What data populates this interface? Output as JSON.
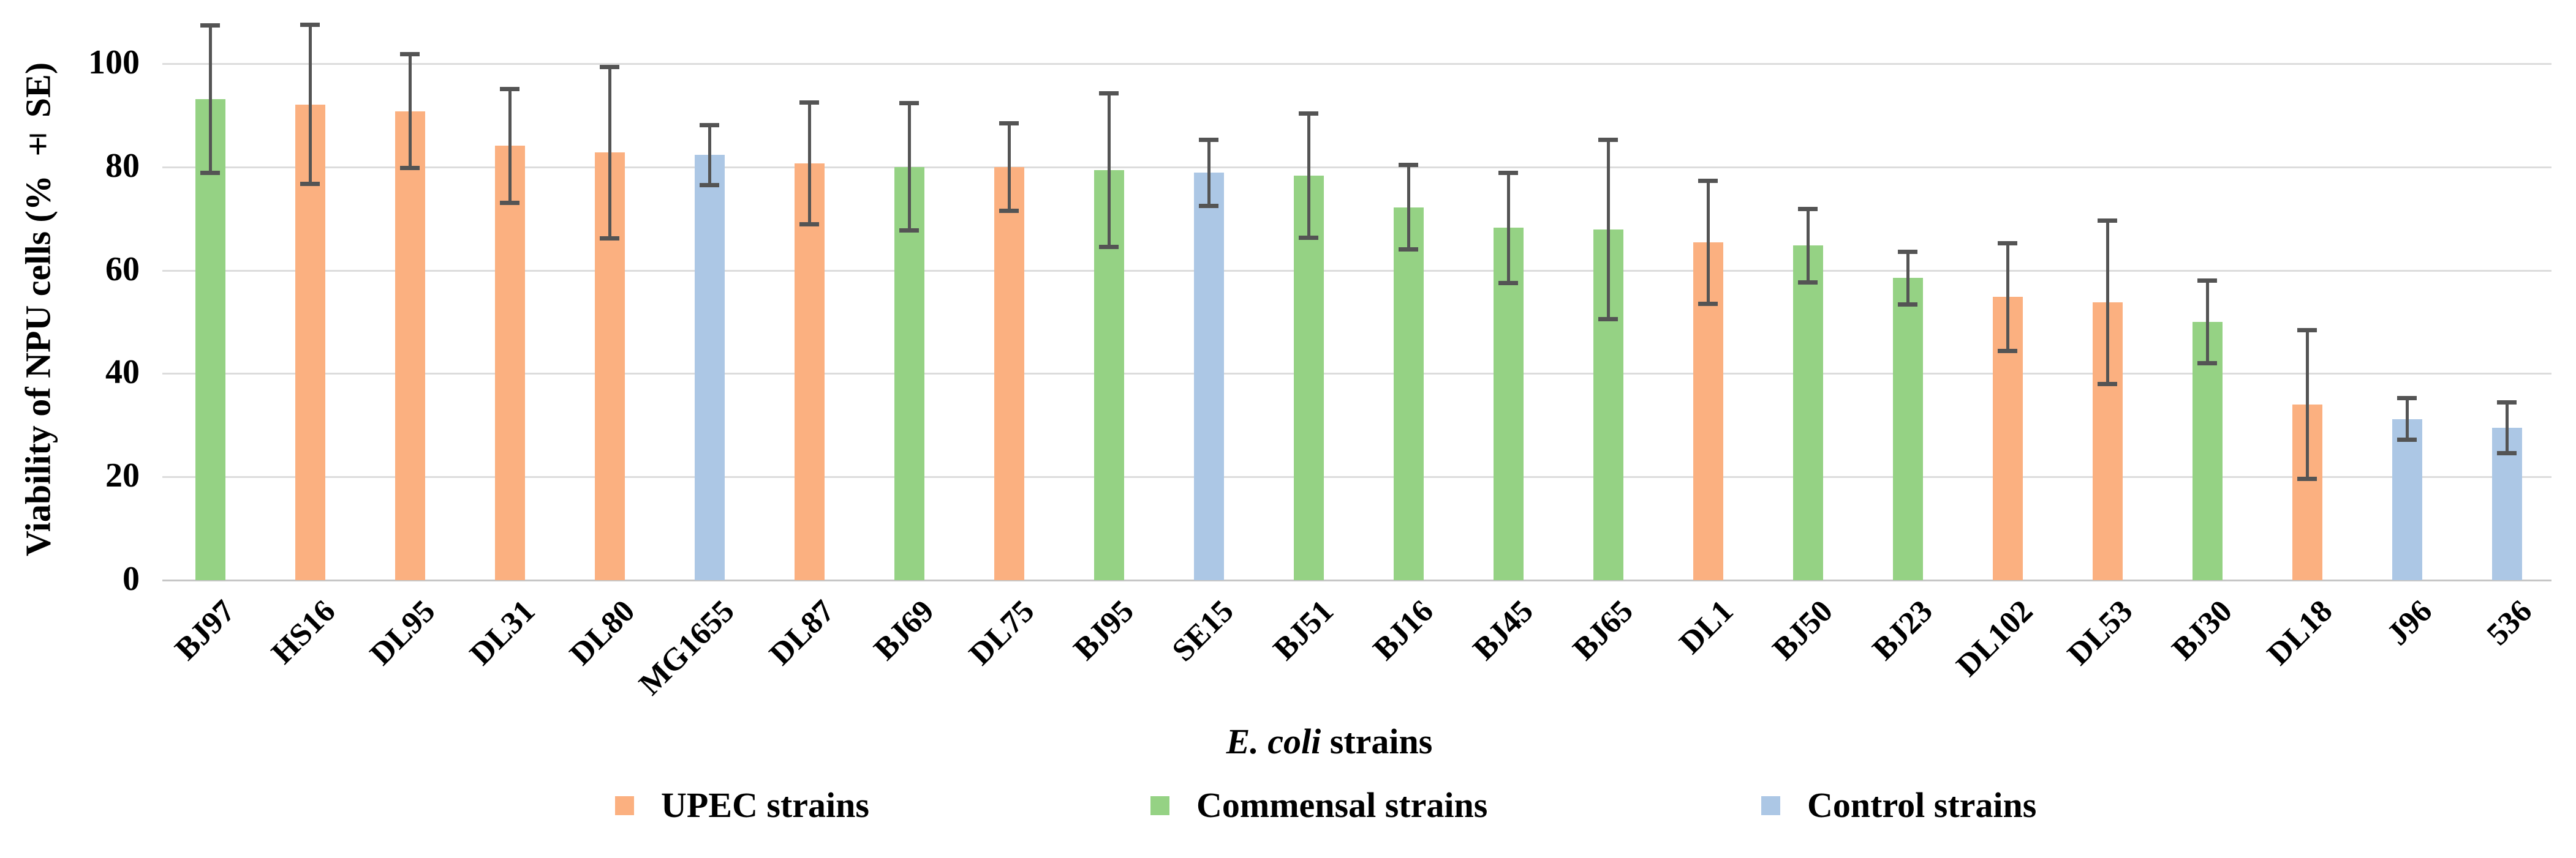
{
  "chart_data": {
    "type": "bar",
    "title": "",
    "ylabel": "Viability of NPU cells (% ± SE)",
    "xlabel_italic": "E. coli",
    "xlabel_rest": " strains",
    "ylim": [
      0,
      100
    ],
    "yticks": [
      0,
      20,
      40,
      60,
      80,
      100
    ],
    "grid": "horizontal",
    "legend_position": "bottom",
    "error_bar_color": "#545454",
    "gridline_color": "#DCDCDC",
    "groups": [
      {
        "name": "UPEC strains",
        "color": "#FBB080"
      },
      {
        "name": "Commensal strains",
        "color": "#95D284"
      },
      {
        "name": "Control strains",
        "color": "#ACC7E5"
      }
    ],
    "bars": [
      {
        "label": "BJ97",
        "group": "Commensal strains",
        "value": 93.1,
        "se": 14.3
      },
      {
        "label": "HS16",
        "group": "UPEC strains",
        "value": 92.1,
        "se": 15.4
      },
      {
        "label": "DL95",
        "group": "UPEC strains",
        "value": 90.8,
        "se": 11.0
      },
      {
        "label": "DL31",
        "group": "UPEC strains",
        "value": 84.1,
        "se": 11.0
      },
      {
        "label": "DL80",
        "group": "UPEC strains",
        "value": 82.8,
        "se": 16.6
      },
      {
        "label": "MG1655",
        "group": "Control strains",
        "value": 82.3,
        "se": 5.8
      },
      {
        "label": "DL87",
        "group": "UPEC strains",
        "value": 80.7,
        "se": 11.8
      },
      {
        "label": "BJ69",
        "group": "Commensal strains",
        "value": 80.0,
        "se": 12.3
      },
      {
        "label": "DL75",
        "group": "UPEC strains",
        "value": 80.0,
        "se": 8.5
      },
      {
        "label": "BJ95",
        "group": "Commensal strains",
        "value": 79.4,
        "se": 14.9
      },
      {
        "label": "SE15",
        "group": "Control strains",
        "value": 78.9,
        "se": 6.4
      },
      {
        "label": "BJ51",
        "group": "Commensal strains",
        "value": 78.3,
        "se": 12.0
      },
      {
        "label": "BJ16",
        "group": "Commensal strains",
        "value": 72.2,
        "se": 8.2
      },
      {
        "label": "BJ45",
        "group": "Commensal strains",
        "value": 68.2,
        "se": 10.7
      },
      {
        "label": "BJ65",
        "group": "Commensal strains",
        "value": 67.9,
        "se": 17.4
      },
      {
        "label": "DL1",
        "group": "UPEC strains",
        "value": 65.4,
        "se": 11.9
      },
      {
        "label": "BJ50",
        "group": "Commensal strains",
        "value": 64.8,
        "se": 7.1
      },
      {
        "label": "BJ23",
        "group": "Commensal strains",
        "value": 58.5,
        "se": 5.1
      },
      {
        "label": "DL102",
        "group": "UPEC strains",
        "value": 54.8,
        "se": 10.4
      },
      {
        "label": "DL53",
        "group": "UPEC strains",
        "value": 53.8,
        "se": 15.8
      },
      {
        "label": "BJ30",
        "group": "Commensal strains",
        "value": 50.0,
        "se": 8.0
      },
      {
        "label": "DL18",
        "group": "UPEC strains",
        "value": 34.0,
        "se": 14.4
      },
      {
        "label": "J96",
        "group": "Control strains",
        "value": 31.2,
        "se": 4.0
      },
      {
        "label": "536",
        "group": "Control strains",
        "value": 29.5,
        "se": 4.9
      }
    ]
  }
}
